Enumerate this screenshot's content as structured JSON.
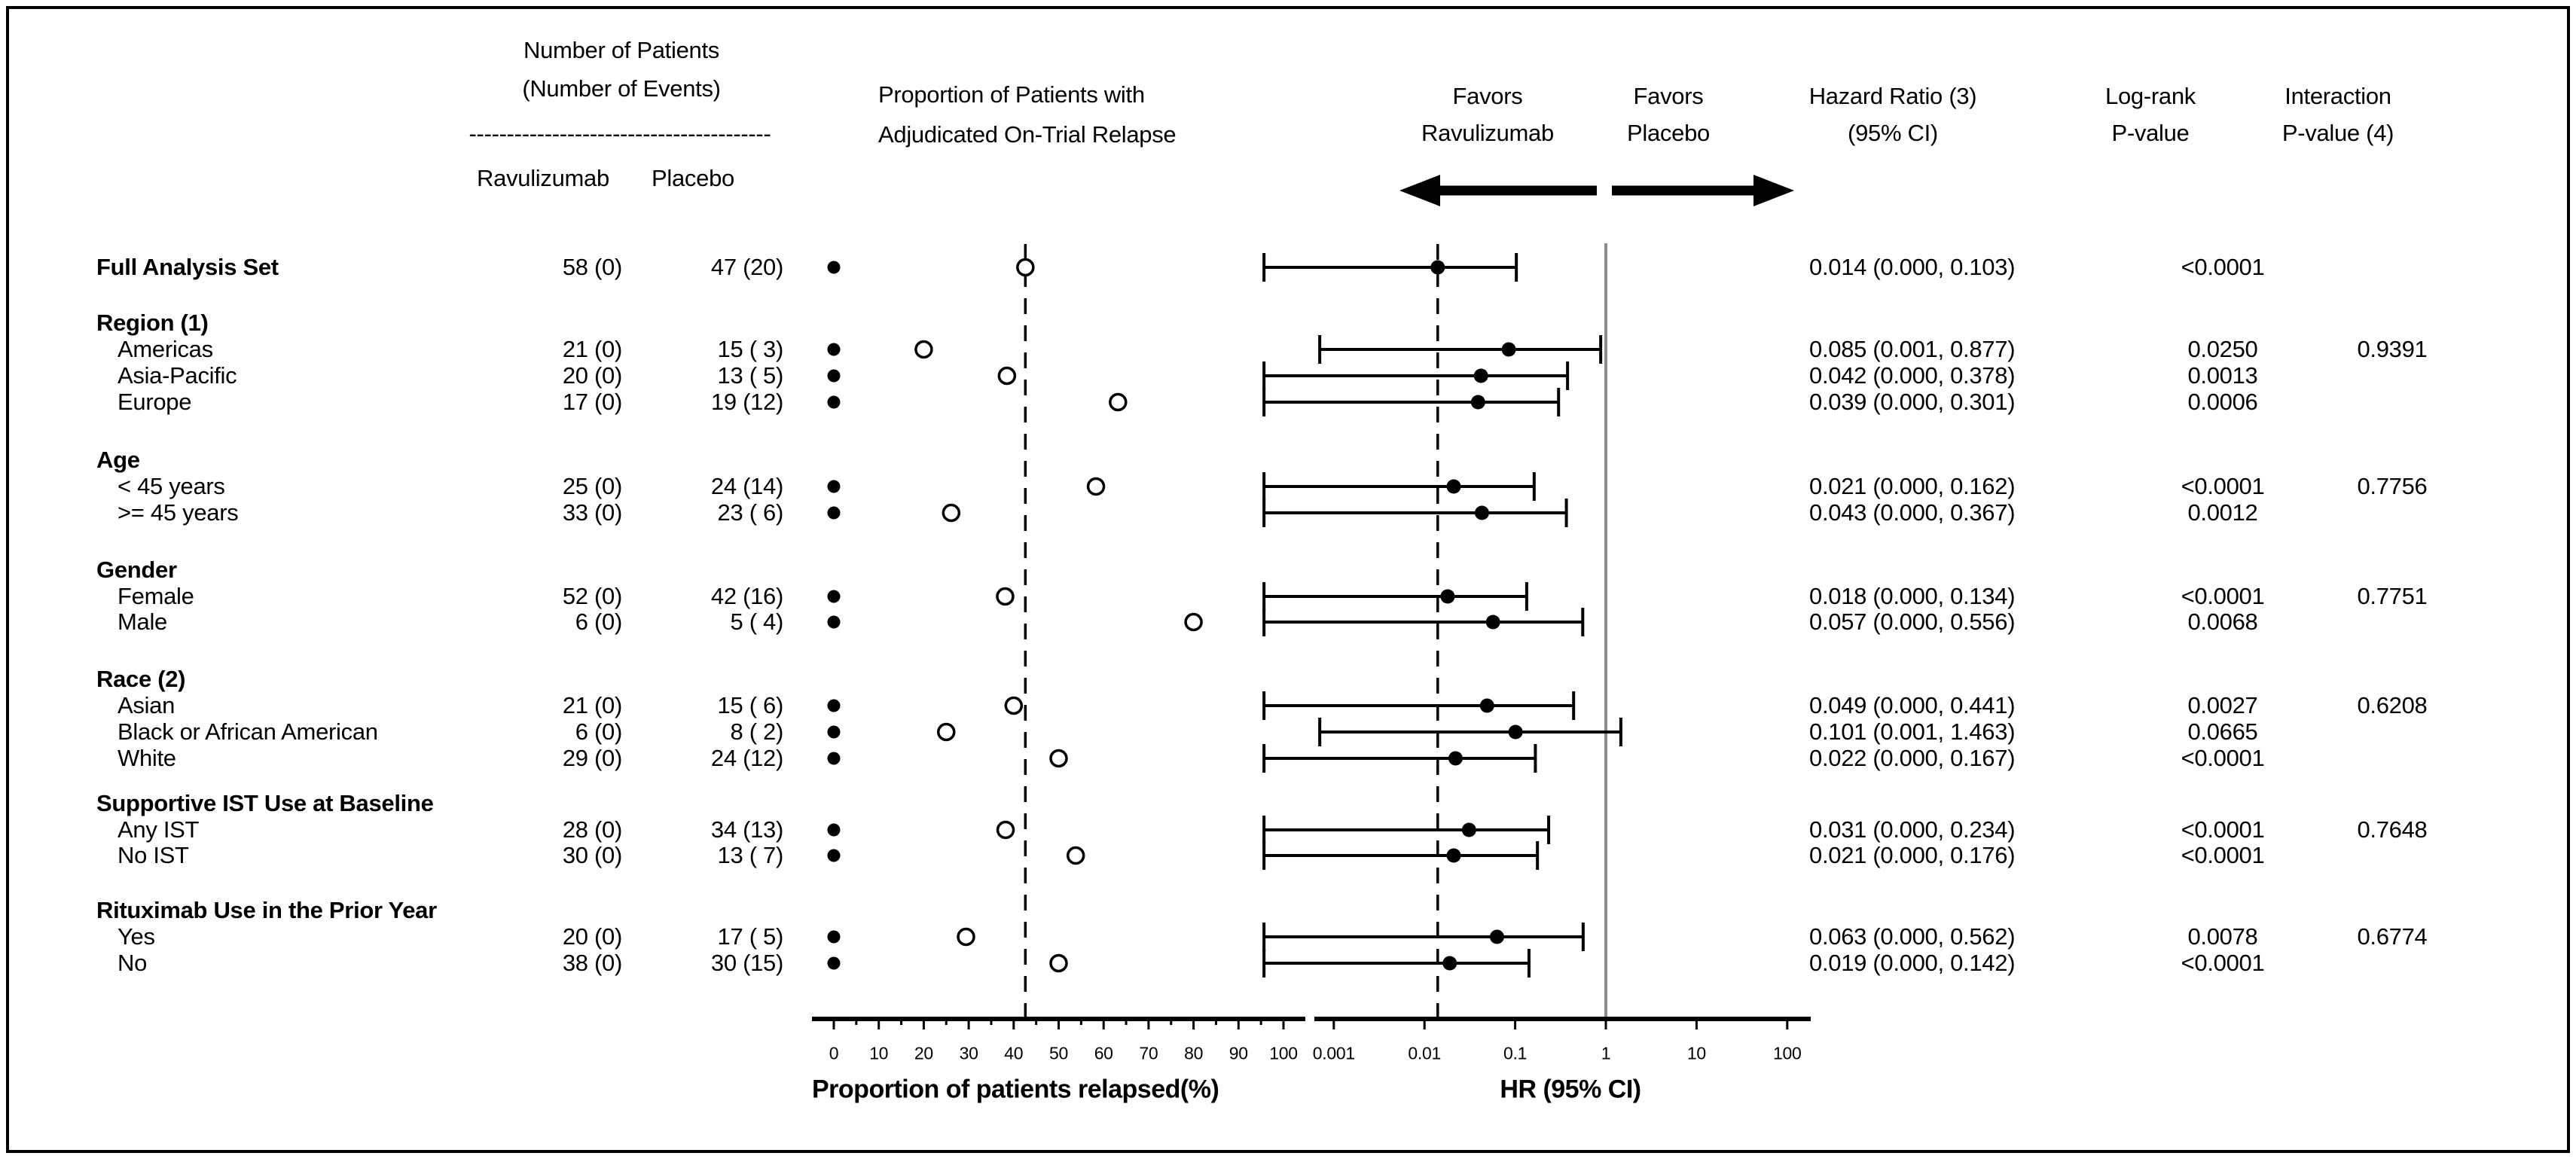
{
  "columns": {
    "patients_header_line1": "Number of Patients",
    "patients_header_line2": "(Number of Events)",
    "patients_separator": "----------------------------------------",
    "arm_ravulizumab": "Ravulizumab",
    "arm_placebo": "Placebo",
    "proportion_header_line1": "Proportion of Patients with",
    "proportion_header_line2": "Adjudicated On-Trial Relapse",
    "favors_left_line1": "Favors",
    "favors_left_line2": "Ravulizumab",
    "favors_right_line1": "Favors",
    "favors_right_line2": "Placebo",
    "hr_header_line1": "Hazard Ratio (3)",
    "hr_header_line2": "(95% CI)",
    "logrank_header_line1": "Log-rank",
    "logrank_header_line2": "P-value",
    "interaction_header_line1": "Interaction",
    "interaction_header_line2": "P-value (4)"
  },
  "chart_data": {
    "type": "forest",
    "prop_axis": {
      "label": "Proportion of patients relapsed(%)",
      "min": 0,
      "max": 100,
      "major_ticks": [
        0,
        10,
        20,
        30,
        40,
        50,
        60,
        70,
        80,
        90,
        100
      ],
      "tick_labels": [
        "0",
        "10",
        "20",
        "30",
        "40",
        "50",
        "60",
        "70",
        "80",
        "90",
        "100"
      ],
      "minor_ticks": [
        5,
        15,
        25,
        35,
        45,
        55,
        65,
        75,
        85,
        95
      ],
      "dashed_reference": 42.6,
      "scale": "linear"
    },
    "hr_axis": {
      "label": "HR (95% CI)",
      "ticks": [
        0.001,
        0.01,
        0.1,
        1,
        10,
        100
      ],
      "tick_labels": [
        "0.001",
        "0.01",
        "0.1",
        "1",
        "10",
        "100"
      ],
      "dashed_reference": 0.014,
      "solid_reference": 1,
      "scale": "log"
    },
    "rows": [
      {
        "type": "summary",
        "label": "Full Analysis Set",
        "rav": "58 (0)",
        "pbo": "47 (20)",
        "rav_prop": 0,
        "pbo_prop": 42.6,
        "hr": 0.014,
        "lo": 0,
        "hi": 0.103,
        "hr_text": "0.014 (0.000, 0.103)",
        "p": "<0.0001",
        "ip": ""
      },
      {
        "type": "group",
        "label": "Region (1)"
      },
      {
        "type": "item",
        "label": "Americas",
        "rav": "21 (0)",
        "pbo": "15 ( 3)",
        "rav_prop": 0,
        "pbo_prop": 20.0,
        "hr": 0.085,
        "lo": 0.001,
        "hi": 0.877,
        "hr_text": "0.085 (0.001, 0.877)",
        "p": "0.0250",
        "ip": "0.9391"
      },
      {
        "type": "item",
        "label": "Asia-Pacific",
        "rav": "20 (0)",
        "pbo": "13 ( 5)",
        "rav_prop": 0,
        "pbo_prop": 38.5,
        "hr": 0.042,
        "lo": 0,
        "hi": 0.378,
        "hr_text": "0.042 (0.000, 0.378)",
        "p": "0.0013",
        "ip": ""
      },
      {
        "type": "item",
        "label": "Europe",
        "rav": "17 (0)",
        "pbo": "19 (12)",
        "rav_prop": 0,
        "pbo_prop": 63.2,
        "hr": 0.039,
        "lo": 0,
        "hi": 0.301,
        "hr_text": "0.039 (0.000, 0.301)",
        "p": "0.0006",
        "ip": ""
      },
      {
        "type": "group",
        "label": "Age"
      },
      {
        "type": "item",
        "label": "< 45 years",
        "rav": "25 (0)",
        "pbo": "24 (14)",
        "rav_prop": 0,
        "pbo_prop": 58.3,
        "hr": 0.021,
        "lo": 0,
        "hi": 0.162,
        "hr_text": "0.021 (0.000, 0.162)",
        "p": "<0.0001",
        "ip": "0.7756"
      },
      {
        "type": "item",
        "label": ">= 45 years",
        "rav": "33 (0)",
        "pbo": "23 ( 6)",
        "rav_prop": 0,
        "pbo_prop": 26.1,
        "hr": 0.043,
        "lo": 0,
        "hi": 0.367,
        "hr_text": "0.043 (0.000, 0.367)",
        "p": "0.0012",
        "ip": ""
      },
      {
        "type": "group",
        "label": "Gender"
      },
      {
        "type": "item",
        "label": "Female",
        "rav": "52 (0)",
        "pbo": "42 (16)",
        "rav_prop": 0,
        "pbo_prop": 38.1,
        "hr": 0.018,
        "lo": 0,
        "hi": 0.134,
        "hr_text": "0.018 (0.000, 0.134)",
        "p": "<0.0001",
        "ip": "0.7751"
      },
      {
        "type": "item",
        "label": "Male",
        "rav": "6 (0)",
        "pbo": "5 ( 4)",
        "rav_prop": 0,
        "pbo_prop": 80.0,
        "hr": 0.057,
        "lo": 0,
        "hi": 0.556,
        "hr_text": "0.057 (0.000, 0.556)",
        "p": "0.0068",
        "ip": ""
      },
      {
        "type": "group",
        "label": "Race (2)"
      },
      {
        "type": "item",
        "label": "Asian",
        "rav": "21 (0)",
        "pbo": "15 ( 6)",
        "rav_prop": 0,
        "pbo_prop": 40.0,
        "hr": 0.049,
        "lo": 0,
        "hi": 0.441,
        "hr_text": "0.049 (0.000, 0.441)",
        "p": "0.0027",
        "ip": "0.6208"
      },
      {
        "type": "item",
        "label": "Black or African American",
        "rav": "6 (0)",
        "pbo": "8 ( 2)",
        "rav_prop": 0,
        "pbo_prop": 25.0,
        "hr": 0.101,
        "lo": 0.001,
        "hi": 1.463,
        "hr_text": "0.101 (0.001, 1.463)",
        "p": "0.0665",
        "ip": ""
      },
      {
        "type": "item",
        "label": "White",
        "rav": "29 (0)",
        "pbo": "24 (12)",
        "rav_prop": 0,
        "pbo_prop": 50.0,
        "hr": 0.022,
        "lo": 0,
        "hi": 0.167,
        "hr_text": "0.022 (0.000, 0.167)",
        "p": "<0.0001",
        "ip": ""
      },
      {
        "type": "group",
        "label": "Supportive IST Use at Baseline"
      },
      {
        "type": "item",
        "label": "Any IST",
        "rav": "28 (0)",
        "pbo": "34 (13)",
        "rav_prop": 0,
        "pbo_prop": 38.2,
        "hr": 0.031,
        "lo": 0,
        "hi": 0.234,
        "hr_text": "0.031 (0.000, 0.234)",
        "p": "<0.0001",
        "ip": "0.7648"
      },
      {
        "type": "item",
        "label": "No IST",
        "rav": "30 (0)",
        "pbo": "13 ( 7)",
        "rav_prop": 0,
        "pbo_prop": 53.8,
        "hr": 0.021,
        "lo": 0,
        "hi": 0.176,
        "hr_text": "0.021 (0.000, 0.176)",
        "p": "<0.0001",
        "ip": ""
      },
      {
        "type": "group",
        "label": "Rituximab Use in the Prior Year"
      },
      {
        "type": "item",
        "label": "Yes",
        "rav": "20 (0)",
        "pbo": "17 ( 5)",
        "rav_prop": 0,
        "pbo_prop": 29.4,
        "hr": 0.063,
        "lo": 0,
        "hi": 0.562,
        "hr_text": "0.063 (0.000, 0.562)",
        "p": "0.0078",
        "ip": "0.6774"
      },
      {
        "type": "item",
        "label": "No",
        "rav": "38 (0)",
        "pbo": "30 (15)",
        "rav_prop": 0,
        "pbo_prop": 50.0,
        "hr": 0.019,
        "lo": 0,
        "hi": 0.142,
        "hr_text": "0.019 (0.000, 0.142)",
        "p": "<0.0001",
        "ip": ""
      }
    ]
  }
}
